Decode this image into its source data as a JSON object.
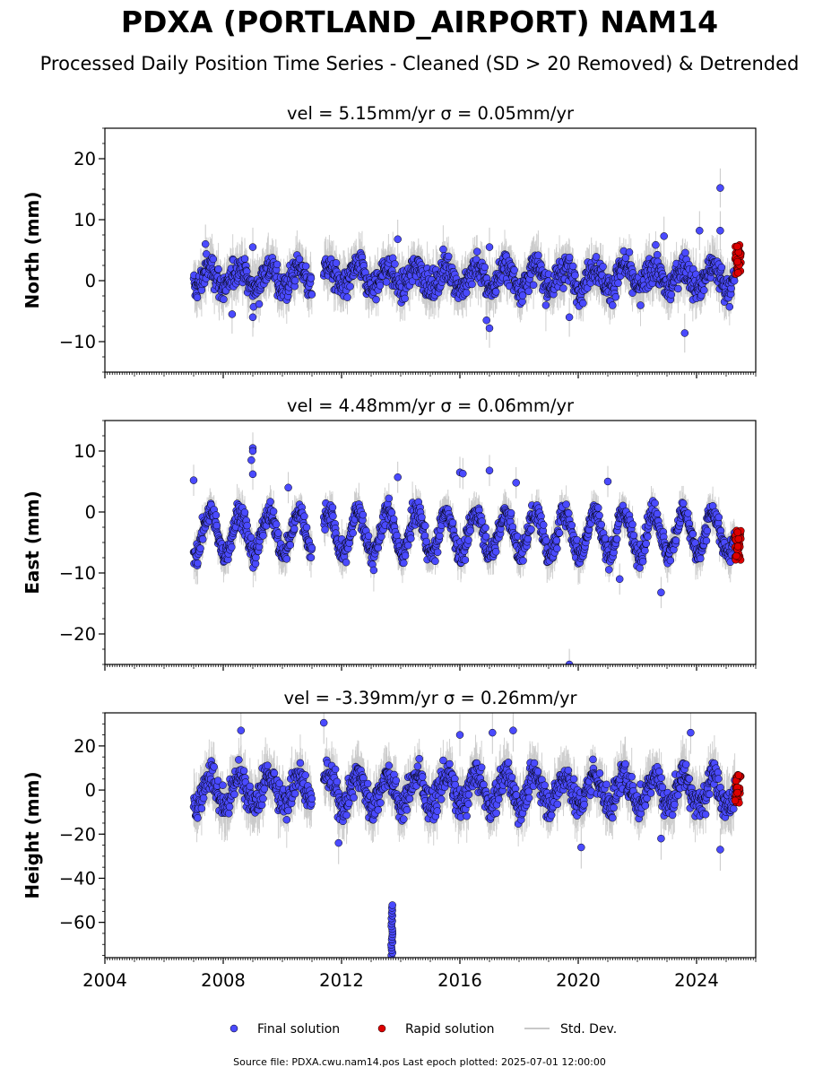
{
  "title": "PDXA (PORTLAND_AIRPORT) NAM14",
  "subtitle": "Processed Daily Position Time Series - Cleaned (SD > 20 Removed) & Detrended",
  "footer": "Source file: PDXA.cwu.nam14.pos  Last epoch plotted: 2025-07-01 12:00:00",
  "legend": [
    {
      "label": "Final solution",
      "color": "#4a4aff"
    },
    {
      "label": "Rapid solution",
      "color": "#dd0000"
    },
    {
      "label": "Std. Dev.",
      "color": "#c8c8c8"
    }
  ],
  "colors": {
    "final": "#4a4aff",
    "rapid": "#dd0000",
    "stddev": "#c8c8c8",
    "edge": "#000000"
  },
  "chart_data": [
    {
      "type": "scatter",
      "panel": "north",
      "title": "vel = 5.15mm/yr   σ = 0.05mm/yr",
      "ylabel": "North (mm)",
      "xlim": [
        2004,
        2026
      ],
      "ylim": [
        -15,
        25
      ],
      "yticks": [
        20,
        10,
        0,
        -10
      ],
      "ytick_labels": [
        "20",
        "10",
        "0",
        "−10"
      ],
      "xticks": [
        2004,
        2008,
        2012,
        2016,
        2020,
        2024
      ],
      "xtick_labels": [
        "2004",
        "2008",
        "2012",
        "2016",
        "2020",
        "2024"
      ],
      "series": [
        {
          "name": "Final solution",
          "segments": [
            [
              2007.0,
              2011.0
            ],
            [
              2011.4,
              2025.3
            ]
          ],
          "amplitude": 1.8,
          "offset": 0.5,
          "noise": 2.0,
          "outliers": [
            [
              2007.4,
              6
            ],
            [
              2008.3,
              -5.5
            ],
            [
              2009.0,
              -6
            ],
            [
              2009.0,
              5.5
            ],
            [
              2013.9,
              6.8
            ],
            [
              2016.9,
              -6.5
            ],
            [
              2017.0,
              -7.8
            ],
            [
              2017.0,
              5.5
            ],
            [
              2019.7,
              -6
            ],
            [
              2022.9,
              7.3
            ],
            [
              2023.6,
              -8.6
            ],
            [
              2024.1,
              8.2
            ],
            [
              2024.8,
              15.2
            ],
            [
              2024.8,
              8.2
            ]
          ]
        },
        {
          "name": "Rapid solution",
          "x_range": [
            2025.3,
            2025.5
          ],
          "y_range": [
            1,
            6
          ]
        }
      ]
    },
    {
      "type": "scatter",
      "panel": "east",
      "title": "vel = 4.48mm/yr   σ = 0.06mm/yr",
      "ylabel": "East (mm)",
      "xlim": [
        2004,
        2026
      ],
      "ylim": [
        -25,
        15
      ],
      "yticks": [
        10,
        0,
        -10,
        -20
      ],
      "ytick_labels": [
        "10",
        "0",
        "−10",
        "−20"
      ],
      "xticks": [
        2004,
        2008,
        2012,
        2016,
        2020,
        2024
      ],
      "xtick_labels": [
        "2004",
        "2008",
        "2012",
        "2016",
        "2020",
        "2024"
      ],
      "series": [
        {
          "name": "Final solution",
          "segments": [
            [
              2007.0,
              2011.0
            ],
            [
              2011.4,
              2025.3
            ]
          ],
          "amplitude": 3.5,
          "offset": -3.5,
          "noise": 1.6,
          "outliers": [
            [
              2007.0,
              5.2
            ],
            [
              2009.0,
              10.5
            ],
            [
              2009.0,
              10
            ],
            [
              2008.95,
              8.5
            ],
            [
              2009.0,
              6.2
            ],
            [
              2010.2,
              4
            ],
            [
              2013.9,
              5.7
            ],
            [
              2016.0,
              6.5
            ],
            [
              2016.1,
              6.3
            ],
            [
              2017.0,
              6.8
            ],
            [
              2017.9,
              4.8
            ],
            [
              2019.7,
              -25
            ],
            [
              2021.0,
              5
            ],
            [
              2021.4,
              -11
            ],
            [
              2022.8,
              -13.2
            ]
          ]
        },
        {
          "name": "Rapid solution",
          "x_range": [
            2025.3,
            2025.5
          ],
          "y_range": [
            -8,
            -3
          ]
        }
      ]
    },
    {
      "type": "scatter",
      "panel": "height",
      "title": "vel = -3.39mm/yr   σ = 0.26mm/yr",
      "ylabel": "Height (mm)",
      "xlim": [
        2004,
        2026
      ],
      "ylim": [
        -76,
        35
      ],
      "yticks": [
        20,
        0,
        -20,
        -40,
        -60
      ],
      "ytick_labels": [
        "20",
        "0",
        "−20",
        "−40",
        "−60"
      ],
      "xticks": [
        2004,
        2008,
        2012,
        2016,
        2020,
        2024
      ],
      "xtick_labels": [
        "2004",
        "2008",
        "2012",
        "2016",
        "2020",
        "2024"
      ],
      "series": [
        {
          "name": "Final solution",
          "segments": [
            [
              2007.0,
              2011.0
            ],
            [
              2011.4,
              2025.3
            ]
          ],
          "amplitude": 7.0,
          "offset": 0,
          "noise": 6.0,
          "outliers": [
            [
              2008.6,
              27
            ],
            [
              2011.4,
              30.5
            ],
            [
              2016.0,
              25
            ],
            [
              2017.1,
              26
            ],
            [
              2017.8,
              27
            ],
            [
              2020.1,
              -26
            ],
            [
              2023.8,
              26
            ],
            [
              2011.9,
              -24
            ],
            [
              2022.8,
              -22
            ],
            [
              2024.8,
              -27
            ]
          ],
          "cluster": {
            "x": 2013.7,
            "y_range": [
              -75,
              -52
            ]
          }
        },
        {
          "name": "Rapid solution",
          "x_range": [
            2025.3,
            2025.5
          ],
          "y_range": [
            -6,
            7
          ]
        }
      ]
    }
  ]
}
